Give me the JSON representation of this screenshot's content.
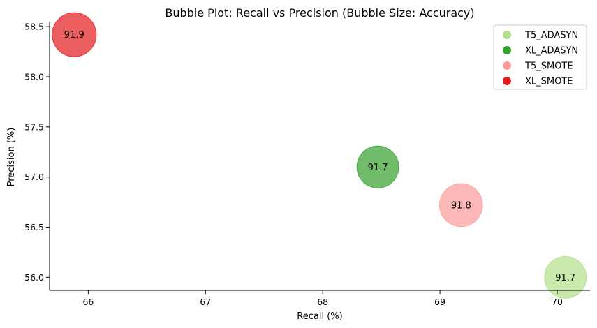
{
  "chart_data": {
    "type": "scatter",
    "title": "Bubble Plot: Recall vs Precision (Bubble Size: Accuracy)",
    "xlabel": "Recall (%)",
    "ylabel": "Precision (%)",
    "xlim": [
      65.67,
      70.28
    ],
    "ylim": [
      55.87,
      58.55
    ],
    "x_ticks": [
      "66",
      "67",
      "68",
      "69",
      "70"
    ],
    "y_ticks": [
      "56.0",
      "56.5",
      "57.0",
      "57.5",
      "58.0",
      "58.5"
    ],
    "grid": false,
    "legend_position": "top-right",
    "series": [
      {
        "name": "T5_ADASYN",
        "color": "#b2df8a",
        "x": 70.07,
        "y": 56.0,
        "accuracy": 91.7,
        "label": "91.7"
      },
      {
        "name": "XL_ADASYN",
        "color": "#33a02c",
        "x": 68.47,
        "y": 57.1,
        "accuracy": 91.7,
        "label": "91.7"
      },
      {
        "name": "T5_SMOTE",
        "color": "#fb9a99",
        "x": 69.18,
        "y": 56.72,
        "accuracy": 91.8,
        "label": "91.8"
      },
      {
        "name": "XL_SMOTE",
        "color": "#e31a1c",
        "x": 65.88,
        "y": 58.42,
        "accuracy": 91.9,
        "label": "91.9"
      }
    ]
  }
}
